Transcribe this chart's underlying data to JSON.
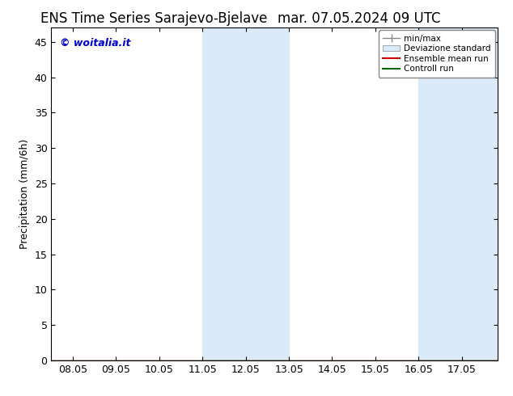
{
  "title_left": "ENS Time Series Sarajevo-Bjelave",
  "title_right": "mar. 07.05.2024 09 UTC",
  "ylabel": "Precipitation (mm/6h)",
  "watermark": "© woitalia.it",
  "ylim": [
    0,
    47
  ],
  "yticks": [
    0,
    5,
    10,
    15,
    20,
    25,
    30,
    35,
    40,
    45
  ],
  "xtick_labels": [
    "08.05",
    "09.05",
    "10.05",
    "11.05",
    "12.05",
    "13.05",
    "14.05",
    "15.05",
    "16.05",
    "17.05"
  ],
  "x_dates": [
    0,
    1,
    2,
    3,
    4,
    5,
    6,
    7,
    8,
    9
  ],
  "x_min": -0.5,
  "x_max": 9.83,
  "shade_bands": [
    {
      "x_start": 3.0,
      "x_end": 4.0,
      "color": "#daeaf8"
    },
    {
      "x_start": 4.0,
      "x_end": 5.0,
      "color": "#daeaf8"
    },
    {
      "x_start": 8.0,
      "x_end": 9.0,
      "color": "#daeaf8"
    },
    {
      "x_start": 9.0,
      "x_end": 9.83,
      "color": "#daeaf8"
    }
  ],
  "ensemble_mean_color": "#cc0000",
  "control_run_color": "#006600",
  "minmax_color": "#888888",
  "std_fill_color": "#daeaf8",
  "background_color": "#ffffff",
  "plot_bg_color": "#ffffff",
  "legend_labels": [
    "min/max",
    "Deviazione standard",
    "Ensemble mean run",
    "Controll run"
  ],
  "title_fontsize": 12,
  "label_fontsize": 9,
  "tick_fontsize": 9,
  "watermark_color": "#0000cc"
}
